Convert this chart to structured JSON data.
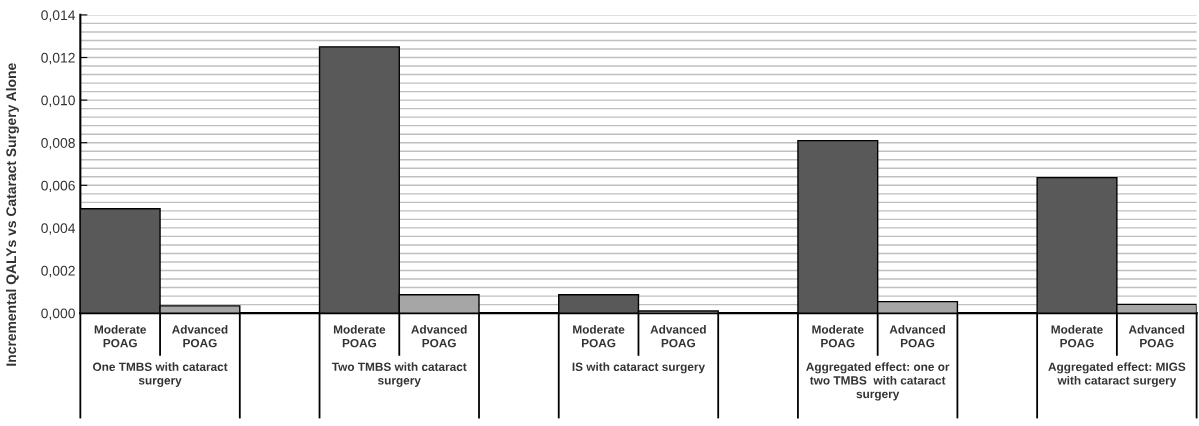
{
  "chart_data": {
    "type": "bar",
    "ylabel": "Incremental QALYs vs Cataract Surgery Alone",
    "categories": [
      "Moderate POAG",
      "Advanced POAG",
      null,
      "Moderate POAG",
      "Advanced POAG",
      null,
      "Moderate POAG",
      "Advanced POAG",
      null,
      "Moderate POAG",
      "Advanced POAG",
      null,
      "Moderate POAG",
      "Advanced POAG"
    ],
    "values": [
      0.0049,
      0.00034,
      null,
      0.0125,
      0.00086,
      null,
      0.00086,
      0.0001,
      null,
      0.0081,
      0.00054,
      null,
      0.00636,
      0.00041
    ],
    "colors": [
      "#595959",
      "#a6a6a6",
      "#ffffff",
      "#595959",
      "#a6a6a6",
      "#ffffff",
      "#595959",
      "#a6a6a6",
      "#ffffff",
      "#595959",
      "#a6a6a6",
      "#ffffff",
      "#595959",
      "#a6a6a6"
    ],
    "ylim": [
      0,
      0.014
    ],
    "yticks": [
      {
        "value": 0,
        "label": "0,000"
      },
      {
        "value": 0.0004,
        "label": null
      },
      {
        "value": 0.0008,
        "label": null
      },
      {
        "value": 0.0012,
        "label": null
      },
      {
        "value": 0.0016,
        "label": null
      },
      {
        "value": 0.002,
        "label": "0,002"
      },
      {
        "value": 0.0024,
        "label": null
      },
      {
        "value": 0.0028,
        "label": null
      },
      {
        "value": 0.0032,
        "label": null
      },
      {
        "value": 0.0036,
        "label": null
      },
      {
        "value": 0.004,
        "label": "0,004"
      },
      {
        "value": 0.0044,
        "label": null
      },
      {
        "value": 0.0048,
        "label": null
      },
      {
        "value": 0.0052,
        "label": null
      },
      {
        "value": 0.0056,
        "label": null
      },
      {
        "value": 0.006,
        "label": "0,006"
      },
      {
        "value": 0.0064,
        "label": null
      },
      {
        "value": 0.0068,
        "label": null
      },
      {
        "value": 0.0072,
        "label": null
      },
      {
        "value": 0.0076,
        "label": null
      },
      {
        "value": 0.008,
        "label": "0,008"
      },
      {
        "value": 0.0084,
        "label": null
      },
      {
        "value": 0.0088,
        "label": null
      },
      {
        "value": 0.0092,
        "label": null
      },
      {
        "value": 0.0096,
        "label": null
      },
      {
        "value": 0.01,
        "label": "0,010"
      },
      {
        "value": 0.0104,
        "label": null
      },
      {
        "value": 0.0108,
        "label": null
      },
      {
        "value": 0.0112,
        "label": null
      },
      {
        "value": 0.0116,
        "label": null
      },
      {
        "value": 0.012,
        "label": "0,012"
      },
      {
        "value": 0.0124,
        "label": null
      },
      {
        "value": 0.0128,
        "label": null
      },
      {
        "value": 0.0132,
        "label": null
      },
      {
        "value": 0.0136,
        "label": null
      },
      {
        "value": 0.014,
        "label": "0,014"
      }
    ],
    "grid": "y",
    "annotations": [
      "One TMBS with cataract surgery",
      "Two TMBS with cataract surgery",
      "IS with cataract surgery",
      "Aggregated effect: one or two TMBS  with cataract surgery",
      "Aggregated effect: MIGS with cataract surgery"
    ]
  }
}
